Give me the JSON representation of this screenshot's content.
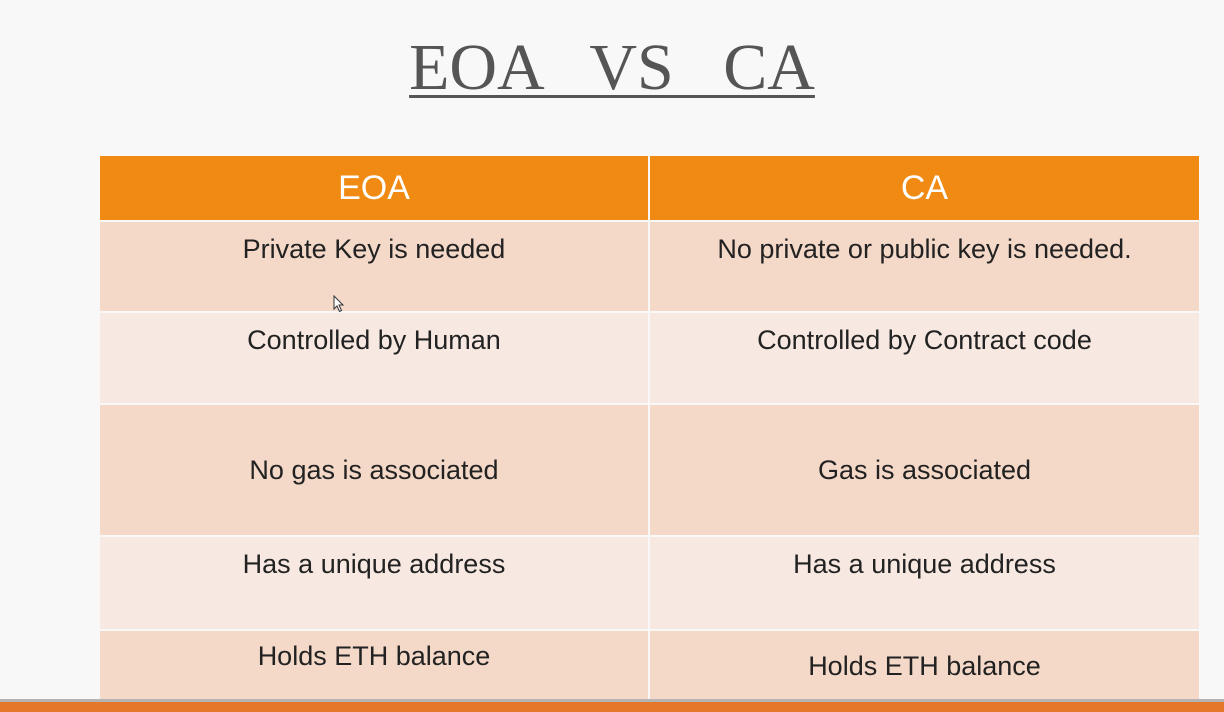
{
  "slide": {
    "title": "EOA   VS   CA"
  },
  "table": {
    "headers": [
      "EOA",
      "CA"
    ],
    "rows": [
      [
        "Private Key is needed",
        "No private or public key is needed."
      ],
      [
        "Controlled by Human",
        "Controlled by Contract code"
      ],
      [
        "No gas is associated",
        "Gas is associated"
      ],
      [
        "Has a unique address",
        "Has a unique address"
      ],
      [
        "Holds ETH balance",
        "Holds ETH balance"
      ]
    ]
  },
  "colors": {
    "header_bg": "#f08a12",
    "row_odd_bg": "#f4d8c8",
    "row_even_bg": "#f7e9e1",
    "title_color": "#555555",
    "bottom_bar": "#e5772a"
  },
  "icons": {
    "cursor": "mouse-pointer-icon"
  }
}
